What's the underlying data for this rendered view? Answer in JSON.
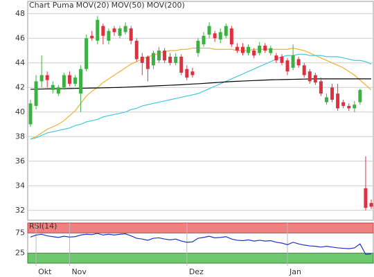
{
  "chart_data": [
    {
      "type": "candlestick",
      "title": "Chart Puma",
      "title_color": "#e07030",
      "categories": [
        null,
        "Okt",
        null,
        null,
        null,
        null,
        null,
        "Nov",
        null,
        null,
        null,
        null,
        null,
        null,
        null,
        null,
        null,
        null,
        null,
        null,
        null,
        null,
        null,
        null,
        null,
        null,
        null,
        null,
        "Dez",
        null,
        null,
        null,
        null,
        null,
        null,
        null,
        null,
        null,
        null,
        null,
        null,
        null,
        null,
        null,
        null,
        null,
        "Jan",
        null,
        null,
        null,
        null,
        null,
        null,
        null,
        null,
        null,
        null,
        null,
        null,
        null,
        null,
        null
      ],
      "up_color": "#3cb043",
      "down_color": "#e03040",
      "open": [
        39,
        40.5,
        42.5,
        43,
        41.8,
        41.5,
        42,
        43,
        42.3,
        41.5,
        43.5,
        46.2,
        45.8,
        47,
        45.8,
        46.8,
        46.2,
        46.5,
        46.8,
        45.8,
        44.5,
        44.5,
        43.8,
        44.2,
        45,
        44.5,
        44,
        44.5,
        43.5,
        43.3,
        44.8,
        45.5,
        46.3,
        46.4,
        45.9,
        46.2,
        46.8,
        45.3,
        45.3,
        44.8,
        45,
        44.8,
        45.4,
        44.8,
        44.6,
        44.5,
        44.2,
        43.6,
        44.3,
        43.8,
        43.3,
        43,
        42.5,
        40.8,
        42,
        41.5,
        40.8,
        40.5,
        40.3,
        40.8,
        33.8,
        32.6
      ],
      "high": [
        41,
        43,
        44.6,
        43.3,
        42.5,
        42.2,
        43.2,
        43.3,
        43,
        43.8,
        46.3,
        46.6,
        47.8,
        47.2,
        46.8,
        47,
        47,
        47.3,
        47,
        46,
        44.8,
        44.6,
        45,
        45.3,
        45.2,
        44.8,
        44.8,
        44.7,
        43.8,
        43.6,
        46,
        46.5,
        47.3,
        46.6,
        46.8,
        47.2,
        47,
        45.6,
        45.6,
        45.5,
        45.2,
        45.7,
        45.6,
        45.4,
        44.8,
        44.7,
        44.4,
        45.5,
        44.5,
        44,
        43.5,
        43.2,
        42.8,
        41.5,
        42.3,
        42.3,
        41,
        40.7,
        40.9,
        41.9,
        36.4,
        32.9
      ],
      "low": [
        38.8,
        40.2,
        42,
        42,
        41.5,
        41.3,
        41.8,
        42.1,
        42.1,
        40,
        43.3,
        45.8,
        45.5,
        45.5,
        45.5,
        46.2,
        46,
        46.3,
        45.5,
        44.1,
        43,
        42.5,
        43.5,
        44,
        44,
        43.8,
        43.8,
        43,
        42.6,
        42.8,
        44.5,
        45.3,
        46,
        45.7,
        45.6,
        46,
        45.3,
        44.8,
        44.6,
        44.6,
        44.4,
        44.6,
        44.8,
        44.6,
        44,
        43.8,
        43,
        43.4,
        43.6,
        42.8,
        42.3,
        42.2,
        41.3,
        40.6,
        40.8,
        40.1,
        40.3,
        40.1,
        40,
        40.6,
        32,
        32.1
      ],
      "close": [
        40.7,
        42.5,
        43,
        42.6,
        42.2,
        42,
        43,
        42.3,
        42.8,
        43.5,
        46,
        46,
        47.5,
        46.2,
        46.6,
        46.5,
        46.8,
        47,
        45.8,
        44.3,
        44,
        43.5,
        44.8,
        45,
        44.2,
        44,
        44.5,
        43.2,
        42.8,
        43,
        45.8,
        46.2,
        47,
        46,
        46.5,
        47,
        45.5,
        45,
        44.8,
        45.3,
        44.6,
        45.4,
        45,
        45.2,
        44.2,
        44,
        43.3,
        44.6,
        43.8,
        43,
        42.5,
        42.4,
        41.5,
        41.2,
        41,
        40.3,
        40.5,
        40.3,
        40.6,
        41.8,
        32.2,
        32.3
      ],
      "series": [
        {
          "name": "MOV(20)",
          "color": "#f0b030",
          "values": [
            37.8,
            38,
            38.3,
            38.6,
            38.8,
            39,
            39.3,
            39.7,
            40.1,
            40.7,
            41.3,
            41.7,
            42,
            42.4,
            42.7,
            43,
            43.3,
            43.6,
            43.9,
            44.1,
            44.3,
            44.5,
            44.6,
            44.8,
            44.9,
            45,
            45,
            45.1,
            45.1,
            45.2,
            45.2,
            45.2,
            45.2,
            45.1,
            45.1,
            45.1,
            45.1,
            45,
            45,
            45,
            45.1,
            45.1,
            45.1,
            45.1,
            45.1,
            45.1,
            45.1,
            45.2,
            45.1,
            45,
            44.8,
            44.6,
            44.4,
            44.2,
            44,
            43.8,
            43.6,
            43.3,
            43,
            42.6,
            42.2,
            41.8
          ]
        },
        {
          "name": "MOV(50)",
          "color": "#40c8e0",
          "values": [
            37.8,
            37.9,
            38.1,
            38.3,
            38.4,
            38.5,
            38.6,
            38.7,
            38.9,
            39,
            39.2,
            39.3,
            39.4,
            39.6,
            39.7,
            39.8,
            39.9,
            40,
            40.2,
            40.3,
            40.5,
            40.6,
            40.7,
            40.8,
            40.9,
            41,
            41.1,
            41.2,
            41.3,
            41.4,
            41.5,
            41.7,
            41.9,
            42.1,
            42.3,
            42.5,
            42.7,
            42.9,
            43.1,
            43.3,
            43.5,
            43.7,
            43.9,
            44.1,
            44.3,
            44.5,
            44.6,
            44.6,
            44.7,
            44.7,
            44.6,
            44.6,
            44.6,
            44.5,
            44.5,
            44.5,
            44.4,
            44.3,
            44.2,
            44.2,
            44.1,
            43.9
          ]
        },
        {
          "name": "MOV(200)",
          "color": "#000000",
          "values": [
            41.85,
            41.86,
            41.87,
            41.88,
            41.89,
            41.9,
            41.9,
            41.91,
            41.92,
            41.93,
            41.94,
            41.95,
            41.96,
            41.97,
            41.98,
            41.99,
            42,
            42.02,
            42.04,
            42.06,
            42.08,
            42.1,
            42.12,
            42.14,
            42.16,
            42.18,
            42.2,
            42.22,
            42.25,
            42.28,
            42.3,
            42.33,
            42.36,
            42.39,
            42.42,
            42.45,
            42.48,
            42.5,
            42.52,
            42.54,
            42.56,
            42.58,
            42.6,
            42.62,
            42.63,
            42.64,
            42.65,
            42.66,
            42.67,
            42.68,
            42.69,
            42.7,
            42.7,
            42.7,
            42.7,
            42.7,
            42.7,
            42.7,
            42.7,
            42.7,
            42.7,
            42.7
          ]
        }
      ],
      "ylim": [
        31.2,
        49
      ],
      "yticks": [
        32,
        34,
        36,
        38,
        40,
        42,
        44,
        46,
        48
      ],
      "grid": true
    },
    {
      "type": "line",
      "title": "RSI(14)",
      "series": [
        {
          "name": "RSI(14)",
          "color": "#2030c0",
          "values": [
            65,
            70,
            72,
            68,
            66,
            64,
            67,
            65,
            66,
            70,
            72,
            71,
            74,
            70,
            72,
            70,
            72,
            73,
            68,
            62,
            60,
            57,
            62,
            63,
            60,
            58,
            60,
            55,
            52,
            53,
            62,
            64,
            67,
            63,
            64,
            66,
            60,
            57,
            56,
            58,
            55,
            57,
            55,
            56,
            52,
            50,
            46,
            52,
            48,
            45,
            43,
            42,
            40,
            42,
            40,
            38,
            37,
            36,
            38,
            48,
            22,
            23
          ]
        }
      ],
      "ylim": [
        0,
        100
      ],
      "yticks": [
        25,
        75
      ],
      "overbought_color": "#f08080",
      "oversold_color": "#6cc86c"
    }
  ]
}
